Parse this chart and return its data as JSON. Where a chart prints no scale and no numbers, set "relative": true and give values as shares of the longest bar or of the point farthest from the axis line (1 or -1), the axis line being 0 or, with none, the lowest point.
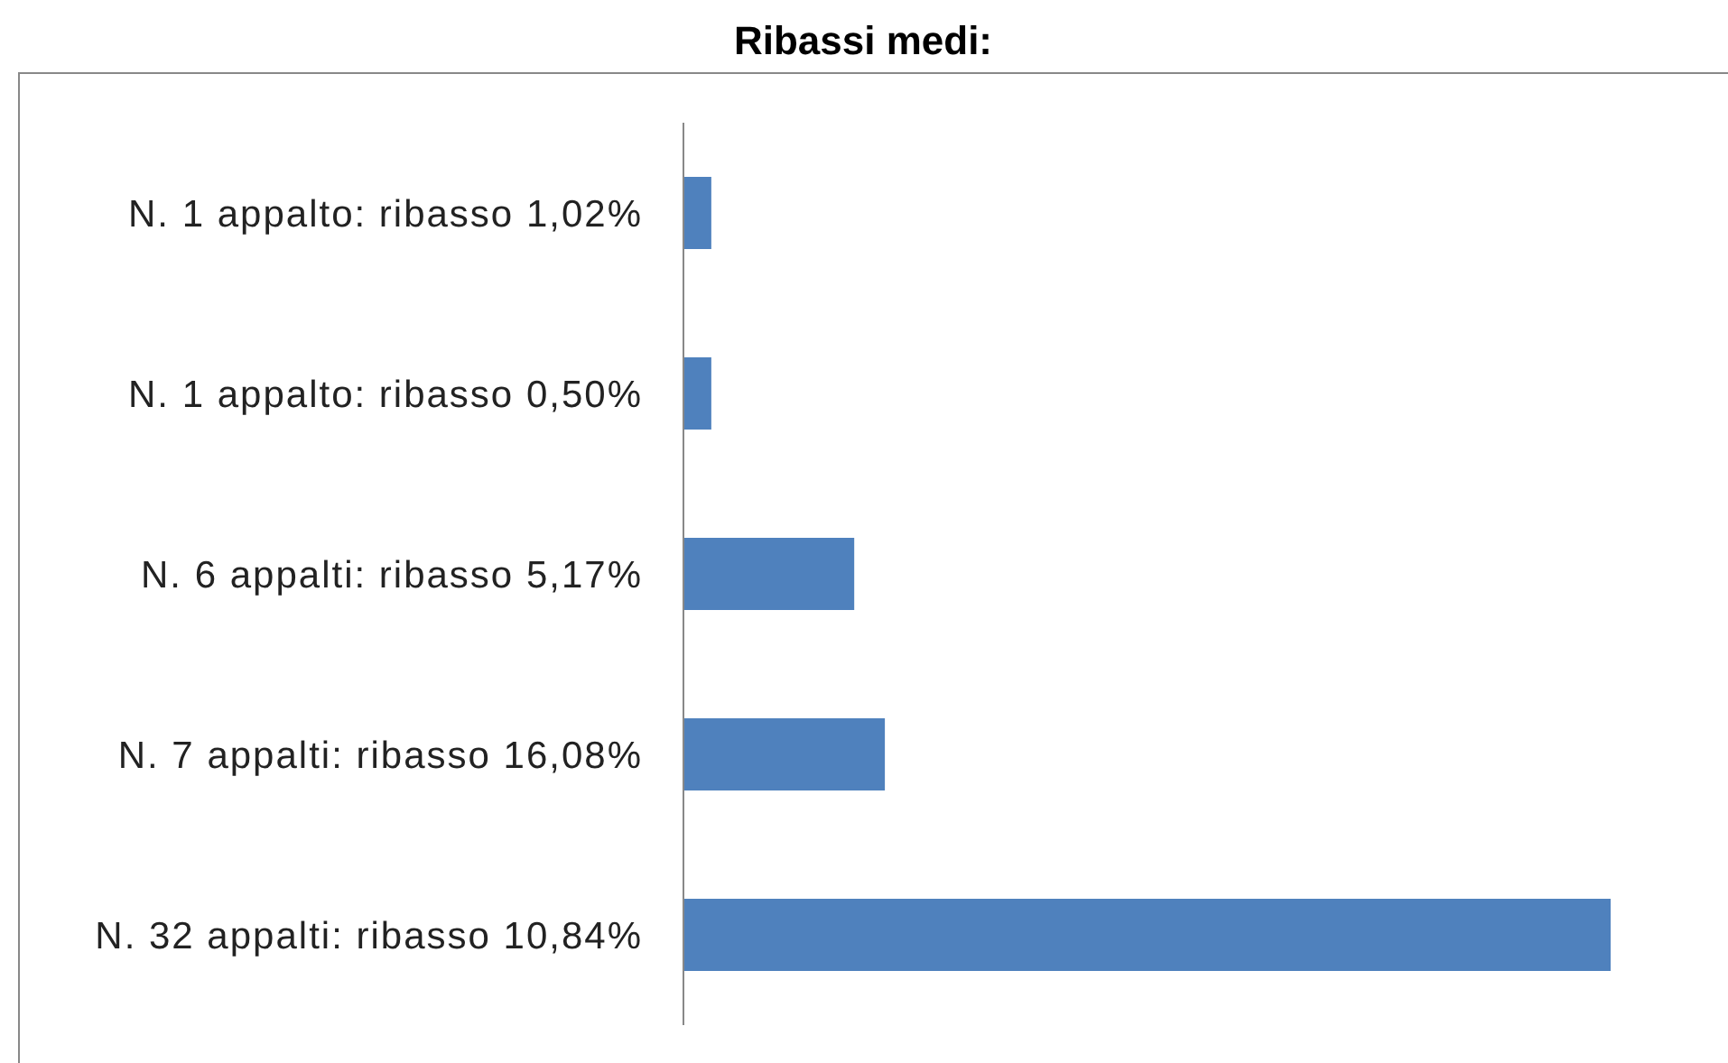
{
  "chart_data": {
    "type": "bar",
    "orientation": "horizontal",
    "relative": true,
    "title": "Ribassi medi:",
    "categories": [
      "N. 1 appalto: ribasso 1,02%",
      "N. 1 appalto: ribasso 0,50%",
      "N. 6 appalti: ribasso 5,17%",
      "N. 7 appalti: ribasso 16,08%",
      "N. 32 appalti: ribasso 10,84%"
    ],
    "values": [
      0.031,
      0.031,
      0.185,
      0.218,
      1
    ],
    "color": "#4f81bd"
  }
}
